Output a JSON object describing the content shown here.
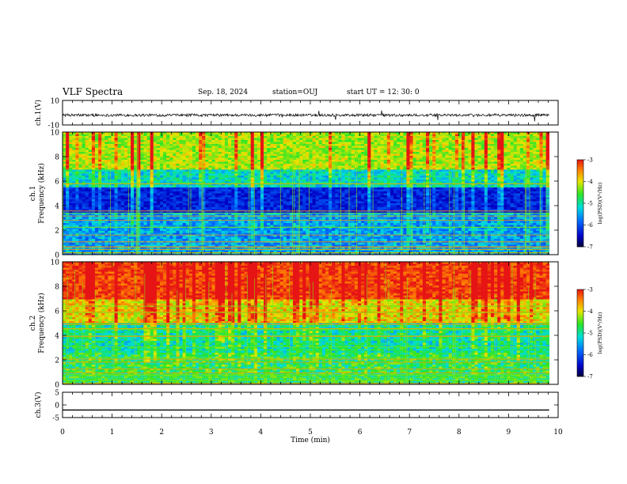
{
  "header": {
    "title": "VLF Spectra",
    "date": "Sep. 18, 2024",
    "station": "station=OUJ",
    "start": "start  UT  =   12: 30: 0"
  },
  "chart_data": [
    {
      "type": "line",
      "title": "",
      "ylabel": "ch.1(V)",
      "ylim": [
        -10,
        10
      ],
      "yticks": [
        "10",
        "-10"
      ],
      "baseline": -2,
      "xlabel": "",
      "xlim": [
        0,
        10
      ],
      "colors": {
        "trace": "#000000"
      }
    },
    {
      "type": "heatmap",
      "title": "",
      "ylabel": "ch.1\nFrequency (kHz)",
      "ylim": [
        0,
        10
      ],
      "yticks": [
        "0",
        "2",
        "4",
        "6",
        "8",
        "10"
      ],
      "xlim": [
        0,
        10
      ],
      "data_end_min": 9.82,
      "colorbar": {
        "label": "log(PSD)(V²/Hz)",
        "ticks": [
          "-3",
          "-4",
          "-5",
          "-6",
          "-7"
        ],
        "range": [
          -7,
          -3
        ]
      }
    },
    {
      "type": "heatmap",
      "title": "",
      "ylabel": "ch.2\nFrequency (kHz)",
      "ylim": [
        0,
        10
      ],
      "yticks": [
        "0",
        "2",
        "4",
        "6",
        "8",
        "10"
      ],
      "xlim": [
        0,
        10
      ],
      "data_end_min": 9.82,
      "colorbar": {
        "label": "log(PSD)(V²/Hz)",
        "ticks": [
          "-3",
          "-4",
          "-5",
          "-6",
          "-7"
        ],
        "range": [
          -7,
          -3
        ]
      }
    },
    {
      "type": "line",
      "title": "",
      "ylabel": "ch.3(V)",
      "ylim": [
        -5,
        5
      ],
      "yticks": [
        "5",
        "0",
        "-5"
      ],
      "baseline": -2,
      "xlabel": "Time (min)",
      "xlim": [
        0,
        10
      ],
      "xticks": [
        "0",
        "1",
        "2",
        "3",
        "4",
        "5",
        "6",
        "7",
        "8",
        "9",
        "10"
      ],
      "colors": {
        "trace": "#000000"
      }
    }
  ]
}
